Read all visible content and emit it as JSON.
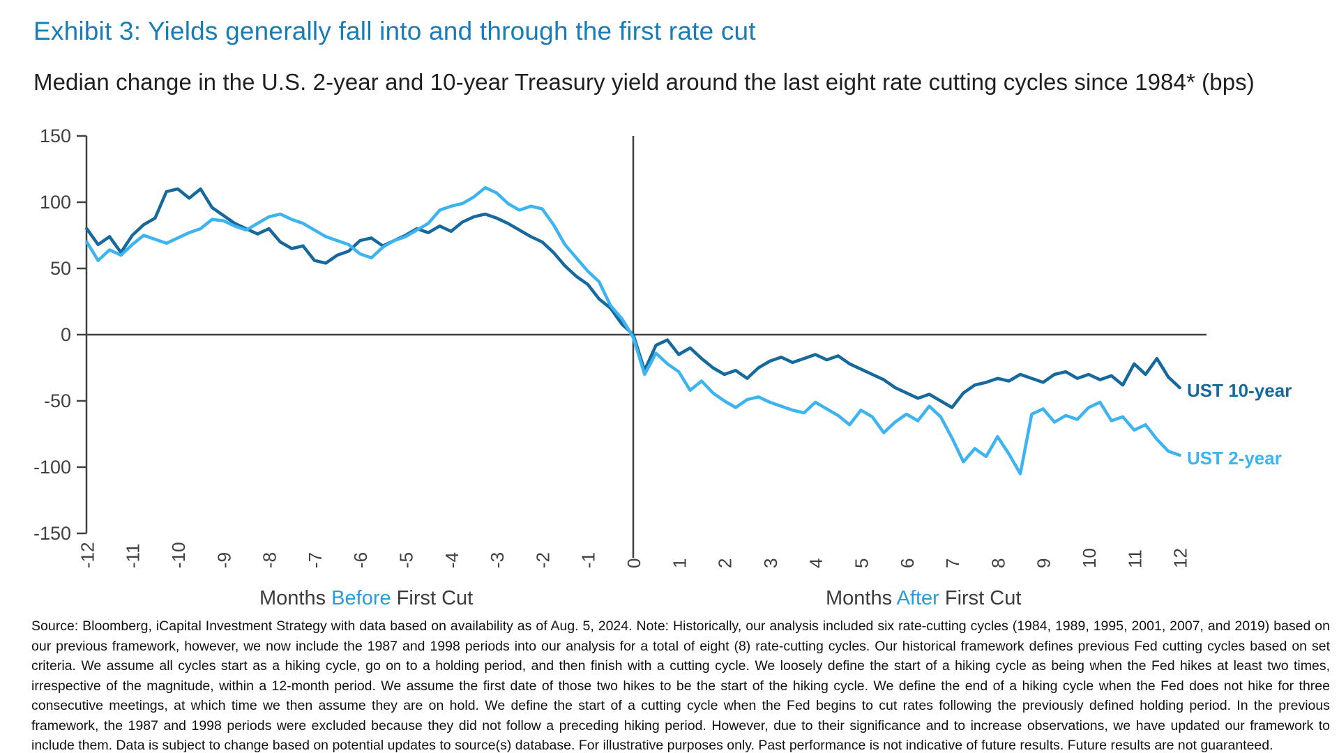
{
  "page": {
    "title": "Exhibit 3: Yields generally fall into and through the first rate cut",
    "subtitle": "Median change in the U.S. 2-year and 10-year Treasury yield around the last eight rate cutting cycles since 1984* (bps)",
    "footnote": "Source: Bloomberg, iCapital Investment Strategy with data based on availability as of Aug. 5, 2024. Note: Historically, our analysis included six rate-cutting cycles (1984, 1989, 1995, 2001, 2007, and 2019) based on our previous framework, however, we now include the 1987 and 1998 periods into our analysis for a total of eight (8) rate-cutting cycles. Our historical framework defines previous Fed cutting cycles based on set criteria. We assume all cycles start as a hiking cycle, go on to a holding period, and then finish with a cutting cycle. We loosely define the start of a hiking cycle as being when the Fed hikes at least two times, irrespective of the magnitude, within a 12-month period. We assume the first date of those two hikes to be the start of the hiking cycle. We define the end of a hiking cycle when the Fed does not hike for three consecutive meetings, at which time we then assume they are on hold. We define the start of a cutting cycle when the Fed begins to cut rates following the previously defined holding period. In the previous framework, the 1987 and 1998 periods were excluded because they did not follow a preceding hiking period. However, due to their significance and to increase observations, we have updated our framework to include them. Data is subject to change based on potential updates to source(s) database. For illustrative purposes only. Past performance is not indicative of future results. Future results are not guaranteed."
  },
  "axis_captions": {
    "before": {
      "pre": "Months ",
      "highlight": "Before",
      "post": " First Cut"
    },
    "after": {
      "pre": "Months ",
      "highlight": "After",
      "post": " First Cut"
    }
  },
  "colors": {
    "title_blue": "#177cb8",
    "accent_blue": "#2b9cd8",
    "axis_gray": "#404040",
    "tick_text": "#404040",
    "ust10": "#16699c",
    "ust2": "#3db4ef"
  },
  "chart_data": {
    "type": "line",
    "title": "Median change in the U.S. 2-year and 10-year Treasury yield around the last eight rate cutting cycles since 1984* (bps)",
    "xlabel": "Months before/after first cut",
    "ylabel": "bps",
    "ylim": [
      -150,
      150
    ],
    "xlim": [
      -12,
      12
    ],
    "grid": false,
    "legend_position": "right-end-of-lines",
    "yticks": [
      150,
      100,
      50,
      0,
      -50,
      -100,
      -150
    ],
    "xticks": [
      -12,
      -11,
      -10,
      -9,
      -8,
      -7,
      -6,
      -5,
      -4,
      -3,
      -2,
      -1,
      0,
      1,
      2,
      3,
      4,
      5,
      6,
      7,
      8,
      9,
      10,
      11,
      12
    ],
    "x": {
      "start": -12,
      "end": 12,
      "step": 0.25
    },
    "series": [
      {
        "name": "UST 10-year",
        "color": "#16699c",
        "values": [
          80,
          68,
          74,
          62,
          75,
          83,
          88,
          108,
          110,
          103,
          110,
          96,
          90,
          84,
          80,
          76,
          80,
          70,
          65,
          67,
          56,
          54,
          60,
          63,
          71,
          73,
          67,
          71,
          75,
          80,
          77,
          82,
          78,
          85,
          89,
          91,
          88,
          84,
          79,
          74,
          70,
          62,
          52,
          44,
          38,
          27,
          20,
          8,
          0,
          -27,
          -8,
          -4,
          -15,
          -10,
          -18,
          -25,
          -30,
          -27,
          -33,
          -25,
          -20,
          -17,
          -21,
          -18,
          -15,
          -19,
          -16,
          -22,
          -26,
          -30,
          -34,
          -40,
          -44,
          -48,
          -45,
          -50,
          -55,
          -44,
          -38,
          -36,
          -33,
          -35,
          -30,
          -33,
          -36,
          -30,
          -28,
          -33,
          -30,
          -34,
          -31,
          -38,
          -22,
          -30,
          -18,
          -32,
          -40
        ]
      },
      {
        "name": "UST 2-year",
        "color": "#3db4ef",
        "values": [
          70,
          56,
          64,
          60,
          68,
          75,
          72,
          69,
          73,
          77,
          80,
          87,
          86,
          82,
          79,
          84,
          89,
          91,
          87,
          84,
          79,
          74,
          71,
          68,
          61,
          58,
          66,
          71,
          74,
          79,
          84,
          94,
          97,
          99,
          104,
          111,
          107,
          99,
          94,
          97,
          95,
          83,
          68,
          58,
          48,
          40,
          22,
          12,
          -2,
          -30,
          -14,
          -22,
          -28,
          -42,
          -35,
          -44,
          -50,
          -55,
          -49,
          -47,
          -51,
          -54,
          -57,
          -59,
          -51,
          -56,
          -61,
          -68,
          -57,
          -62,
          -74,
          -66,
          -60,
          -65,
          -54,
          -62,
          -78,
          -96,
          -86,
          -92,
          -77,
          -90,
          -105,
          -60,
          -56,
          -66,
          -61,
          -64,
          -55,
          -51,
          -65,
          -62,
          -72,
          -68,
          -79,
          -88,
          -91
        ]
      }
    ]
  }
}
